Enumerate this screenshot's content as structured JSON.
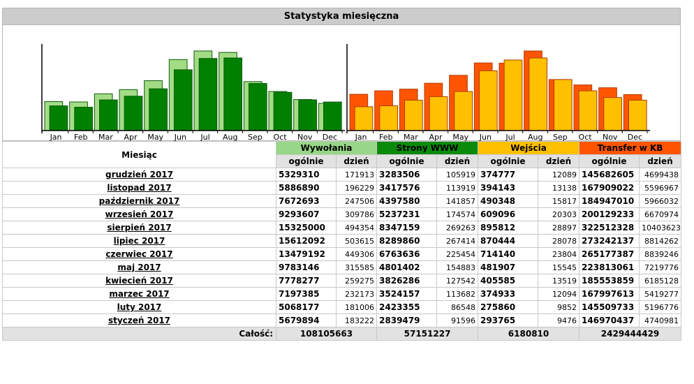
{
  "title": "Statystyka miesięczna",
  "months_short": [
    "Jan",
    "Feb",
    "Mar",
    "Apr",
    "May",
    "Jun",
    "Jul",
    "Aug",
    "Sep",
    "Oct",
    "Nov",
    "Dec"
  ],
  "colors": {
    "visits_light": "#a4dc86",
    "pages_dark": "#008000",
    "entries_yellow": "#ffc000",
    "transfer_orange": "#ff5500"
  },
  "table": {
    "month_header": "Miesiąc",
    "groups": [
      "Wywołania",
      "Strony WWW",
      "Wejścia",
      "Transfer w KB"
    ],
    "sub_total": "ogólnie",
    "sub_day": "dzień",
    "rows": [
      {
        "month": "grudzień 2017",
        "c1": "5329310",
        "c2": "171913",
        "c3": "3283506",
        "c4": "105919",
        "c5": "374777",
        "c6": "12089",
        "c7": "145682605",
        "c8": "4699438"
      },
      {
        "month": "listopad 2017",
        "c1": "5886890",
        "c2": "196229",
        "c3": "3417576",
        "c4": "113919",
        "c5": "394143",
        "c6": "13138",
        "c7": "167909022",
        "c8": "5596967"
      },
      {
        "month": "październik 2017",
        "c1": "7672693",
        "c2": "247506",
        "c3": "4397580",
        "c4": "141857",
        "c5": "490348",
        "c6": "15817",
        "c7": "184947010",
        "c8": "5966032"
      },
      {
        "month": "wrzesień 2017",
        "c1": "9293607",
        "c2": "309786",
        "c3": "5237231",
        "c4": "174574",
        "c5": "609096",
        "c6": "20303",
        "c7": "200129233",
        "c8": "6670974"
      },
      {
        "month": "sierpień 2017",
        "c1": "15325000",
        "c2": "494354",
        "c3": "8347159",
        "c4": "269263",
        "c5": "895812",
        "c6": "28897",
        "c7": "322512328",
        "c8": "10403623"
      },
      {
        "month": "lipiec 2017",
        "c1": "15612092",
        "c2": "503615",
        "c3": "8289860",
        "c4": "267414",
        "c5": "870444",
        "c6": "28078",
        "c7": "273242137",
        "c8": "8814262"
      },
      {
        "month": "czerwiec 2017",
        "c1": "13479192",
        "c2": "449306",
        "c3": "6763636",
        "c4": "225454",
        "c5": "714140",
        "c6": "23804",
        "c7": "265177387",
        "c8": "8839246"
      },
      {
        "month": "maj 2017",
        "c1": "9783146",
        "c2": "315585",
        "c3": "4801402",
        "c4": "154883",
        "c5": "481907",
        "c6": "15545",
        "c7": "223813061",
        "c8": "7219776"
      },
      {
        "month": "kwiecień 2017",
        "c1": "7778277",
        "c2": "259275",
        "c3": "3826286",
        "c4": "127542",
        "c5": "405585",
        "c6": "13519",
        "c7": "185553859",
        "c8": "6185128"
      },
      {
        "month": "marzec 2017",
        "c1": "7197385",
        "c2": "232173",
        "c3": "3524157",
        "c4": "113682",
        "c5": "374933",
        "c6": "12094",
        "c7": "167997613",
        "c8": "5419277"
      },
      {
        "month": "luty 2017",
        "c1": "5068177",
        "c2": "181006",
        "c3": "2423355",
        "c4": "86548",
        "c5": "275860",
        "c6": "9852",
        "c7": "145509733",
        "c8": "5196776"
      },
      {
        "month": "styczeń 2017",
        "c1": "5679894",
        "c2": "183222",
        "c3": "2839479",
        "c4": "91596",
        "c5": "293765",
        "c6": "9476",
        "c7": "146970437",
        "c8": "4740981"
      }
    ],
    "total_label": "Całość:",
    "totals": [
      "108105663",
      "57151227",
      "6180810",
      "2429444429"
    ]
  },
  "chart_data": [
    {
      "type": "bar",
      "categories": [
        "Jan",
        "Feb",
        "Mar",
        "Apr",
        "May",
        "Jun",
        "Jul",
        "Aug",
        "Sep",
        "Oct",
        "Nov",
        "Dec"
      ],
      "series": [
        {
          "values": [
            183222,
            181006,
            232173,
            259275,
            315585,
            449306,
            503615,
            494354,
            309786,
            247506,
            196229,
            171913
          ]
        },
        {
          "values": [
            91596,
            86548,
            113682,
            127542,
            154883,
            225454,
            267414,
            269263,
            174574,
            141857,
            113919,
            105919
          ]
        }
      ]
    },
    {
      "type": "bar",
      "categories": [
        "Jan",
        "Feb",
        "Mar",
        "Apr",
        "May",
        "Jun",
        "Jul",
        "Aug",
        "Sep",
        "Oct",
        "Nov",
        "Dec"
      ],
      "series": [
        {
          "values": [
            4740981,
            5196776,
            5419277,
            6185128,
            7219776,
            8839246,
            8814262,
            10403623,
            6670974,
            5966032,
            5596967,
            4699438
          ]
        },
        {
          "values": [
            9476,
            9852,
            12094,
            13519,
            15545,
            23804,
            28078,
            28897,
            20303,
            15817,
            13138,
            12089
          ]
        }
      ]
    }
  ]
}
